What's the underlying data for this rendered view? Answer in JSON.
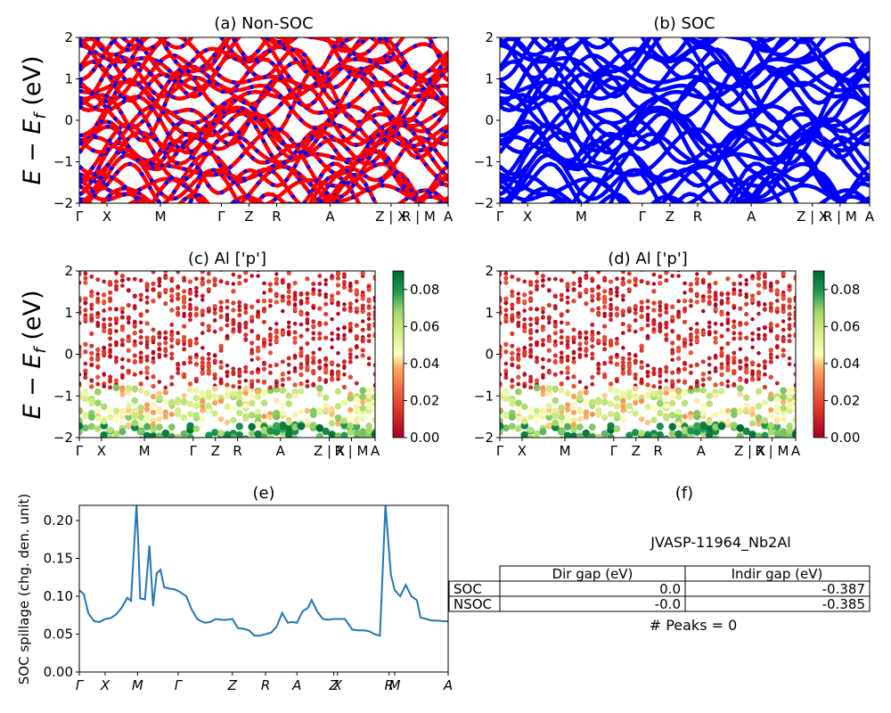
{
  "figure_label": "JVASP-11964_Nb2Al",
  "peaks_text": "# Peaks = 0",
  "panels": {
    "a": {
      "title": "(a) Non-SOC"
    },
    "b": {
      "title": "(b) SOC"
    },
    "c": {
      "title": "(c)  Al ['p']"
    },
    "d": {
      "title": "(d) Al ['p']"
    },
    "e": {
      "title": "(e)"
    },
    "f": {
      "title": "(f)"
    }
  },
  "ylabel_energy": "E − E",
  "ylabel_energy_sub": "f",
  "ylabel_energy_unit": " (eV)",
  "ylabel_spillage": "SOC spillage (chg. den. unit)",
  "table": {
    "headers": [
      "",
      "Dir gap (eV)",
      "Indir gap (eV)"
    ],
    "rows": [
      {
        "label": "SOC",
        "dir": "0.0",
        "indir": "-0.387"
      },
      {
        "label": "NSOC",
        "dir": "-0.0",
        "indir": "-0.385"
      }
    ]
  },
  "colors": {
    "nonsoc_primary": "#ff0000",
    "nonsoc_secondary": "#0000ff",
    "soc": "#0000ff",
    "spillage_line": "#1f77b4",
    "cmap_low": "#a50026",
    "cmap_mid": "#ffffbf",
    "cmap_high": "#006837"
  },
  "chart_data": [
    {
      "id": "a",
      "type": "line",
      "title": "(a) Non-SOC",
      "ylim": [
        -2,
        2
      ],
      "yticks": [
        -2,
        -1,
        0,
        1,
        2
      ],
      "xticks": [
        {
          "label": "Γ",
          "x": 0.0
        },
        {
          "label": "X",
          "x": 0.075
        },
        {
          "label": "M",
          "x": 0.22
        },
        {
          "label": "Γ",
          "x": 0.385
        },
        {
          "label": "Z",
          "x": 0.46
        },
        {
          "label": "R",
          "x": 0.535
        },
        {
          "label": "A",
          "x": 0.68
        },
        {
          "label": "Z | X",
          "x": 0.845
        },
        {
          "label": "R | M",
          "x": 0.92
        },
        {
          "label": "A",
          "x": 1.0
        }
      ]
    },
    {
      "id": "b",
      "type": "line",
      "title": "(b) SOC",
      "ylim": [
        -2,
        2
      ],
      "yticks": [
        -2,
        -1,
        0,
        1,
        2
      ],
      "xticks": [
        {
          "label": "Γ",
          "x": 0.0
        },
        {
          "label": "X",
          "x": 0.075
        },
        {
          "label": "M",
          "x": 0.22
        },
        {
          "label": "Γ",
          "x": 0.385
        },
        {
          "label": "Z",
          "x": 0.46
        },
        {
          "label": "R",
          "x": 0.535
        },
        {
          "label": "A",
          "x": 0.68
        },
        {
          "label": "Z | X",
          "x": 0.845
        },
        {
          "label": "R | M",
          "x": 0.92
        },
        {
          "label": "A",
          "x": 1.0
        }
      ]
    },
    {
      "id": "c",
      "type": "scatter",
      "title": "(c)  Al ['p']",
      "ylim": [
        -2,
        2
      ],
      "yticks": [
        -2,
        -1,
        0,
        1,
        2
      ],
      "colorbar": {
        "range": [
          0,
          0.09
        ],
        "ticks": [
          "0.00",
          "0.02",
          "0.04",
          "0.06",
          "0.08"
        ]
      },
      "xticks": [
        {
          "label": "Γ",
          "x": 0.0
        },
        {
          "label": "X",
          "x": 0.075
        },
        {
          "label": "M",
          "x": 0.22
        },
        {
          "label": "Γ",
          "x": 0.385
        },
        {
          "label": "Z",
          "x": 0.46
        },
        {
          "label": "R",
          "x": 0.535
        },
        {
          "label": "A",
          "x": 0.68
        },
        {
          "label": "Z | X",
          "x": 0.845
        },
        {
          "label": "R | M",
          "x": 0.92
        },
        {
          "label": "A",
          "x": 1.0
        }
      ]
    },
    {
      "id": "d",
      "type": "scatter",
      "title": "(d) Al ['p']",
      "ylim": [
        -2,
        2
      ],
      "yticks": [
        -2,
        -1,
        0,
        1,
        2
      ],
      "colorbar": {
        "range": [
          0,
          0.09
        ],
        "ticks": [
          "0.00",
          "0.02",
          "0.04",
          "0.06",
          "0.08"
        ]
      },
      "xticks": [
        {
          "label": "Γ",
          "x": 0.0
        },
        {
          "label": "X",
          "x": 0.075
        },
        {
          "label": "M",
          "x": 0.22
        },
        {
          "label": "Γ",
          "x": 0.385
        },
        {
          "label": "Z",
          "x": 0.46
        },
        {
          "label": "R",
          "x": 0.535
        },
        {
          "label": "A",
          "x": 0.68
        },
        {
          "label": "Z | X",
          "x": 0.845
        },
        {
          "label": "R | M",
          "x": 0.92
        },
        {
          "label": "A",
          "x": 1.0
        }
      ]
    },
    {
      "id": "e",
      "type": "line",
      "title": "(e)",
      "ylabel": "SOC spillage (chg. den. unit)",
      "ylim": [
        0,
        0.22
      ],
      "yticks": [
        "0.00",
        "0.05",
        "0.10",
        "0.15",
        "0.20"
      ],
      "xticks": [
        {
          "label": "Γ",
          "x": 0.0
        },
        {
          "label": "X",
          "x": 0.07
        },
        {
          "label": "M",
          "x": 0.158
        },
        {
          "label": "Γ",
          "x": 0.268
        },
        {
          "label": "Z",
          "x": 0.415
        },
        {
          "label": "R",
          "x": 0.505
        },
        {
          "label": "A",
          "x": 0.59
        },
        {
          "label": "Z",
          "x": 0.69
        },
        {
          "label": "X",
          "x": 0.7
        },
        {
          "label": "R",
          "x": 0.84
        },
        {
          "label": "M",
          "x": 0.855
        },
        {
          "label": "A",
          "x": 1.0
        }
      ],
      "series": [
        {
          "x": [
            0.0,
            0.012,
            0.025,
            0.04,
            0.055,
            0.07,
            0.085,
            0.1,
            0.115,
            0.13,
            0.14,
            0.155,
            0.16,
            0.165,
            0.178,
            0.19,
            0.2,
            0.21,
            0.22,
            0.23,
            0.245,
            0.26,
            0.275,
            0.29,
            0.305,
            0.32,
            0.33,
            0.34,
            0.355,
            0.37,
            0.385,
            0.4,
            0.415,
            0.43,
            0.445,
            0.46,
            0.475,
            0.49,
            0.505,
            0.52,
            0.535,
            0.55,
            0.565,
            0.575,
            0.59,
            0.605,
            0.62,
            0.63,
            0.645,
            0.66,
            0.675,
            0.69,
            0.705,
            0.72,
            0.74,
            0.755,
            0.77,
            0.785,
            0.8,
            0.815,
            0.83,
            0.845,
            0.855,
            0.87,
            0.885,
            0.9,
            0.915,
            0.925,
            0.94,
            0.955,
            0.97,
            0.985,
            1.0
          ],
          "y": [
            0.108,
            0.103,
            0.077,
            0.067,
            0.066,
            0.07,
            0.071,
            0.076,
            0.085,
            0.098,
            0.094,
            0.22,
            0.17,
            0.097,
            0.096,
            0.167,
            0.087,
            0.13,
            0.135,
            0.112,
            0.11,
            0.109,
            0.105,
            0.1,
            0.082,
            0.07,
            0.067,
            0.065,
            0.066,
            0.07,
            0.069,
            0.069,
            0.07,
            0.058,
            0.057,
            0.055,
            0.048,
            0.048,
            0.05,
            0.052,
            0.06,
            0.078,
            0.065,
            0.066,
            0.065,
            0.08,
            0.085,
            0.095,
            0.08,
            0.07,
            0.069,
            0.07,
            0.07,
            0.07,
            0.056,
            0.055,
            0.055,
            0.054,
            0.05,
            0.048,
            0.22,
            0.128,
            0.108,
            0.1,
            0.115,
            0.1,
            0.095,
            0.072,
            0.07,
            0.068,
            0.068,
            0.067,
            0.067
          ]
        }
      ]
    }
  ]
}
